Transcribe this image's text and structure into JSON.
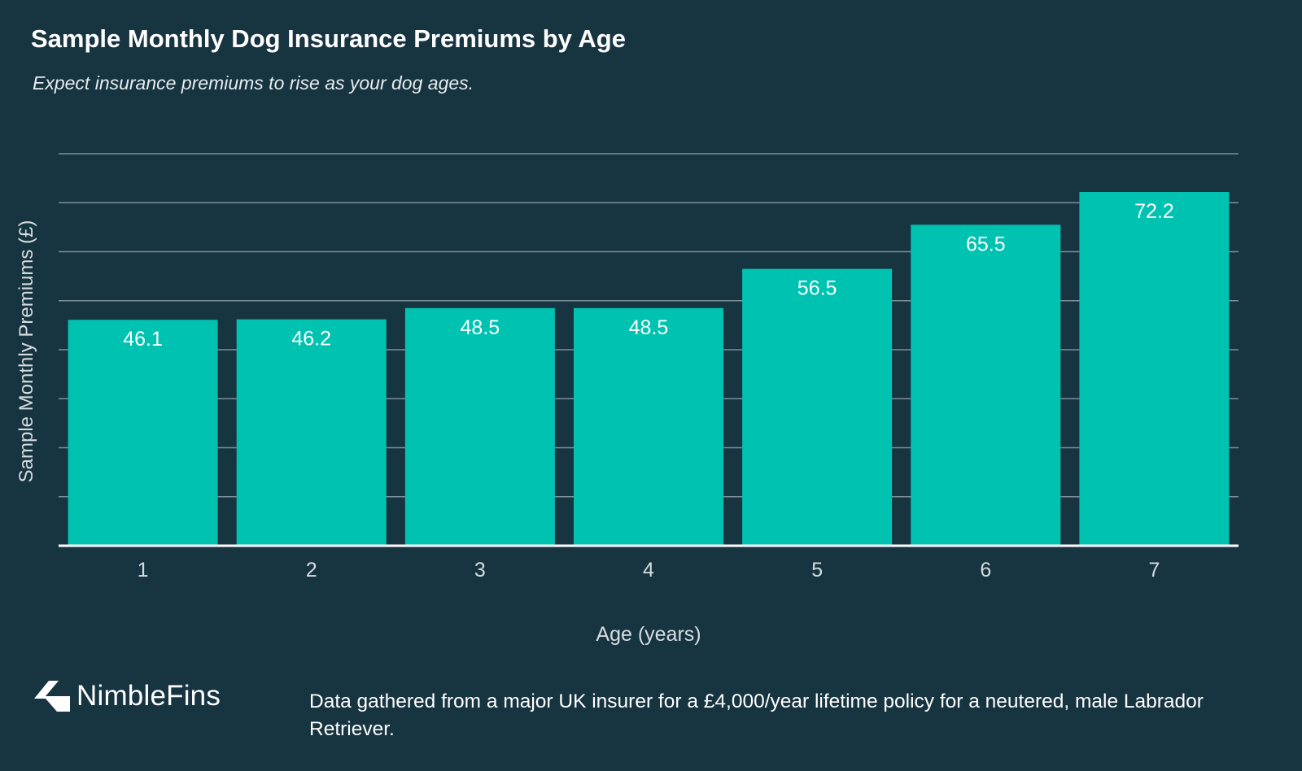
{
  "chart_data": {
    "type": "bar",
    "title": "Sample Monthly Dog Insurance Premiums by Age",
    "subtitle": "Expect insurance premiums to rise as your dog ages.",
    "xlabel": "Age (years)",
    "ylabel": "Sample Monthly Premiums (£)",
    "categories": [
      "1",
      "2",
      "3",
      "4",
      "5",
      "6",
      "7"
    ],
    "values": [
      46.1,
      46.2,
      48.5,
      48.5,
      56.5,
      65.5,
      72.2
    ],
    "value_labels": [
      "46.1",
      "46.2",
      "48.5",
      "48.5",
      "56.5",
      "65.5",
      "72.2"
    ],
    "ylim": [
      0,
      80
    ],
    "y_gridline_step": 10,
    "y_tick_labels_shown": false,
    "grid": true,
    "legend": "none",
    "colors": {
      "background": "#173441",
      "bar": "#00c2b0",
      "gridline": "#7d9099",
      "baseline": "#ffffff",
      "axis_text": "#d5dde1",
      "label_text": "#ffffff"
    }
  },
  "footer": {
    "brand": "NimbleFins",
    "brand_icon": "nimblefins-chevron-logo-icon",
    "note": "Data gathered from a major UK insurer for a £4,000/year lifetime policy for a neutered, male Labrador Retriever."
  }
}
